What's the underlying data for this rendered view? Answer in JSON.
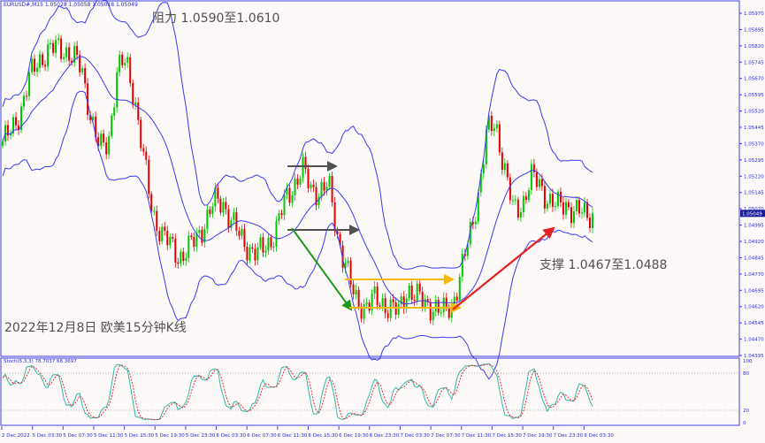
{
  "header": {
    "symbol_info": "EURUSD#,M15  1.05028 1.05058 1.05018 1.05049"
  },
  "annotations": {
    "resistance": "阻力 1.0590至1.0610",
    "support": "支撑 1.0467至1.0488",
    "caption": "2022年12月8日 欧美15分钟K线"
  },
  "colors": {
    "bull": "#00c800",
    "bear": "#e00000",
    "bands": "#3a3af0",
    "axis": "#4040e0",
    "stoch_k": "#30b8a8",
    "stoch_d": "#e03030",
    "arrow_grey": "#505050",
    "arrow_green": "#1a9a1a",
    "arrow_orange": "#f5b800",
    "arrow_red": "#e82020",
    "background": "#fdf9f9"
  },
  "chart_data": {
    "type": "candlestick",
    "symbol": "EURUSD#",
    "timeframe": "M15",
    "current_price": "1.05049",
    "price_ticks": [
      "1.05970",
      "1.05895",
      "1.05820",
      "1.05745",
      "1.05670",
      "1.05595",
      "1.05520",
      "1.05445",
      "1.05370",
      "1.05295",
      "1.05220",
      "1.05145",
      "1.05070",
      "1.04995",
      "1.04920",
      "1.04845",
      "1.04770",
      "1.04695",
      "1.04620",
      "1.04545",
      "1.04470",
      "1.04395"
    ],
    "ylim": [
      1.04395,
      1.0597
    ],
    "time_ticks": [
      "2 Dec 2022",
      "5 Dec 03:30",
      "5 Dec 07:30",
      "5 Dec 11:30",
      "5 Dec 15:30",
      "5 Dec 19:30",
      "5 Dec 23:30",
      "6 Dec 03:30",
      "6 Dec 07:30",
      "6 Dec 11:30",
      "6 Dec 15:30",
      "6 Dec 19:30",
      "6 Dec 23:30",
      "7 Dec 03:30",
      "7 Dec 07:30",
      "7 Dec 11:30",
      "7 Dec 15:30",
      "7 Dec 19:30",
      "7 Dec 23:30",
      "8 Dec 03:30"
    ],
    "close_path": [
      1.0538,
      1.05421,
      1.05522,
      1.05665,
      1.05746,
      1.05795,
      1.05807,
      1.05807,
      1.05767,
      1.05706,
      1.05502,
      1.05339,
      1.0538,
      1.05706,
      1.05746,
      1.05583,
      1.05299,
      1.05054,
      1.04965,
      1.049,
      1.04851,
      1.04879,
      1.04932,
      1.05014,
      1.05095,
      1.05103,
      1.05014,
      1.04932,
      1.04892,
      1.04859,
      1.049,
      1.04973,
      1.05095,
      1.05177,
      1.05258,
      1.05156,
      1.05156,
      1.05177,
      1.04953,
      1.0481,
      1.04647,
      1.04627,
      1.04647,
      1.04635,
      1.04627,
      1.04586,
      1.04709,
      1.04668,
      1.04627,
      1.04627,
      1.04586,
      1.04627,
      1.0477,
      1.04932,
      1.05136,
      1.05421,
      1.05461,
      1.05258,
      1.05054,
      1.05095,
      1.05217,
      1.05177,
      1.05115,
      1.05075,
      1.05095,
      1.05054,
      1.05046,
      1.05049
    ],
    "indicators": {
      "bollinger_bands": true,
      "stochastic": {
        "label": "Stoch(5,3,3) 78.7037 68.3697",
        "levels": [
          "100",
          "80",
          "20",
          "0"
        ]
      }
    }
  }
}
